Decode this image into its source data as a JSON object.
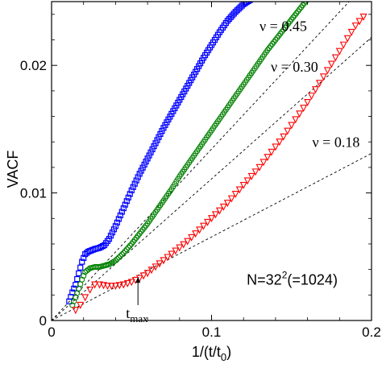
{
  "chart_data": {
    "type": "scatter",
    "xlabel": "1/(t/t0)",
    "ylabel": "VACF",
    "xlim": [
      0,
      0.2
    ],
    "ylim": [
      0,
      0.025
    ],
    "x_ticks": [
      0,
      0.1,
      0.2
    ],
    "x_tick_labels": [
      "0",
      "0.1",
      "0.2"
    ],
    "y_ticks": [
      0,
      0.01,
      0.02
    ],
    "y_tick_labels": [
      "0",
      "0.01",
      "0.02"
    ],
    "grid": false,
    "series": [
      {
        "name": "ν = 0.45",
        "marker": "square",
        "color": "#0000ff",
        "x": [
          0.011,
          0.013,
          0.015,
          0.017,
          0.019,
          0.021,
          0.023,
          0.025,
          0.027,
          0.03,
          0.033,
          0.036,
          0.04,
          0.045,
          0.05,
          0.055,
          0.06,
          0.065,
          0.07,
          0.075,
          0.08,
          0.085,
          0.09,
          0.095,
          0.1,
          0.105,
          0.11,
          0.115,
          0.12,
          0.125,
          0.13
        ],
        "y": [
          0.0015,
          0.0022,
          0.0028,
          0.0037,
          0.0046,
          0.0052,
          0.0054,
          0.0055,
          0.0056,
          0.0057,
          0.0059,
          0.0064,
          0.0074,
          0.0088,
          0.0102,
          0.0115,
          0.0127,
          0.0139,
          0.0151,
          0.0162,
          0.0173,
          0.0184,
          0.0195,
          0.0206,
          0.0216,
          0.0226,
          0.0235,
          0.0242,
          0.0248,
          0.0252,
          0.0255
        ]
      },
      {
        "name": "ν = 0.30",
        "marker": "circle",
        "color": "#008000",
        "x": [
          0.013,
          0.015,
          0.017,
          0.019,
          0.021,
          0.024,
          0.027,
          0.03,
          0.033,
          0.036,
          0.04,
          0.045,
          0.05,
          0.055,
          0.06,
          0.065,
          0.07,
          0.075,
          0.08,
          0.085,
          0.09,
          0.095,
          0.1,
          0.105,
          0.11,
          0.115,
          0.12,
          0.125,
          0.13,
          0.135,
          0.14,
          0.145,
          0.15,
          0.155,
          0.16
        ],
        "y": [
          0.0012,
          0.0018,
          0.0025,
          0.0032,
          0.0038,
          0.0041,
          0.0042,
          0.0042,
          0.0043,
          0.0044,
          0.0047,
          0.0053,
          0.006,
          0.0068,
          0.0076,
          0.0085,
          0.0094,
          0.0103,
          0.0113,
          0.0122,
          0.0131,
          0.014,
          0.0149,
          0.0158,
          0.0167,
          0.0176,
          0.0185,
          0.0194,
          0.0203,
          0.0212,
          0.022,
          0.0228,
          0.0236,
          0.0244,
          0.0252
        ]
      },
      {
        "name": "ν = 0.18",
        "marker": "triangle-down",
        "color": "#ff0000",
        "x": [
          0.015,
          0.018,
          0.021,
          0.024,
          0.027,
          0.03,
          0.035,
          0.04,
          0.045,
          0.05,
          0.055,
          0.06,
          0.065,
          0.07,
          0.075,
          0.08,
          0.085,
          0.09,
          0.095,
          0.1,
          0.105,
          0.11,
          0.115,
          0.12,
          0.125,
          0.13,
          0.135,
          0.14,
          0.145,
          0.15,
          0.155,
          0.16,
          0.165,
          0.17,
          0.175,
          0.18,
          0.185,
          0.19,
          0.195
        ],
        "y": [
          0.0008,
          0.0012,
          0.0018,
          0.0024,
          0.0028,
          0.0028,
          0.0027,
          0.0027,
          0.0028,
          0.003,
          0.0033,
          0.0037,
          0.0042,
          0.0047,
          0.0052,
          0.0057,
          0.0062,
          0.0068,
          0.0074,
          0.008,
          0.0086,
          0.0092,
          0.0099,
          0.0106,
          0.0113,
          0.012,
          0.0128,
          0.0136,
          0.0144,
          0.0153,
          0.0162,
          0.0171,
          0.0181,
          0.0191,
          0.0201,
          0.0211,
          0.0221,
          0.0231,
          0.0238
        ]
      }
    ],
    "reference_lines": [
      {
        "style": "dashed",
        "x": [
          0,
          0.186
        ],
        "y": [
          0,
          0.025
        ]
      },
      {
        "style": "dashed",
        "x": [
          0,
          0.2
        ],
        "y": [
          0,
          0.0222
        ]
      },
      {
        "style": "dashed",
        "x": [
          0,
          0.2
        ],
        "y": [
          0,
          0.0131
        ]
      }
    ],
    "annotations": [
      {
        "text": "ν = 0.45",
        "x": 0.13,
        "y": 0.0227
      },
      {
        "text": "ν = 0.30",
        "x": 0.137,
        "y": 0.0195
      },
      {
        "text": "ν = 0.18",
        "x": 0.163,
        "y": 0.0136
      },
      {
        "text": "t",
        "subscript": "max",
        "x": 0.051,
        "y": 0.0007,
        "arrow_to": [
          0.054,
          0.0034
        ]
      },
      {
        "text": "N=32",
        "superscript": "2",
        "suffix": "(=1024)",
        "x": 0.122,
        "y": 0.0028
      }
    ]
  }
}
